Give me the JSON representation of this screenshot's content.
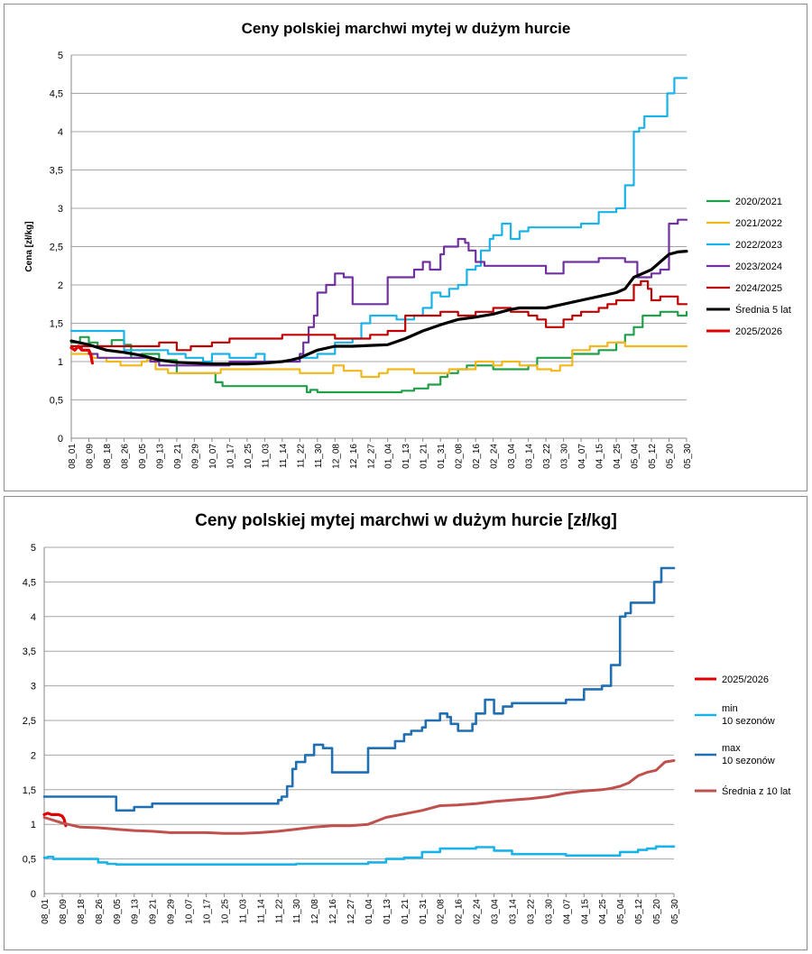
{
  "chart_data": [
    {
      "type": "line",
      "title": "Ceny polskiej  marchwi mytej w dużym hurcie",
      "ylabel": "Cena [zł/kg]",
      "xlabel": "",
      "ylim": [
        0,
        5
      ],
      "yticks": [
        "0",
        "0,5",
        "1",
        "1,5",
        "2",
        "2,5",
        "3",
        "3,5",
        "4",
        "4,5",
        "5"
      ],
      "categories": [
        "08_01",
        "08_09",
        "08_18",
        "08_26",
        "09_05",
        "09_13",
        "09_21",
        "09_29",
        "10_07",
        "10_17",
        "10_25",
        "11_03",
        "11_14",
        "11_22",
        "11_30",
        "12_08",
        "12_16",
        "12_27",
        "01_04",
        "01_13",
        "01_21",
        "01_31",
        "02_08",
        "02_16",
        "02_24",
        "03_04",
        "03_14",
        "03_22",
        "03_30",
        "04_07",
        "04_15",
        "04_25",
        "05_04",
        "05_12",
        "05_20",
        "05_30"
      ],
      "grid": true,
      "legend_position": "right",
      "series": [
        {
          "name": "2020/2021",
          "color": "#1fa048",
          "width": 2.2,
          "step": true,
          "x": [
            0,
            0.5,
            1,
            1.5,
            2.3,
            3,
            3.4,
            4,
            5,
            6,
            6.4,
            7.6,
            8.2,
            8.6,
            13.4,
            13.6,
            14,
            18,
            18.8,
            19.5,
            20.3,
            21,
            21.4,
            22,
            22.5,
            23.5,
            24,
            25,
            26,
            26.5,
            27.5,
            28.5,
            29.5,
            30,
            31,
            31.5,
            32,
            32.5,
            33.5,
            34.5,
            35
          ],
          "values": [
            1.25,
            1.32,
            1.25,
            1.2,
            1.28,
            1.22,
            1.05,
            1.1,
            1.02,
            0.85,
            0.85,
            0.85,
            0.73,
            0.68,
            0.6,
            0.63,
            0.6,
            0.6,
            0.62,
            0.65,
            0.7,
            0.8,
            0.85,
            0.9,
            0.95,
            0.95,
            0.9,
            0.9,
            0.95,
            1.05,
            1.05,
            1.1,
            1.1,
            1.15,
            1.25,
            1.35,
            1.45,
            1.6,
            1.65,
            1.6,
            1.65
          ]
        },
        {
          "name": "2021/2022",
          "color": "#f2b71c",
          "width": 2.2,
          "step": true,
          "x": [
            0,
            1.2,
            2,
            2.8,
            3.5,
            4,
            4.3,
            4.8,
            5.5,
            7,
            8.5,
            13,
            14,
            14.9,
            15.5,
            16.5,
            17.5,
            18,
            19.5,
            21,
            21.5,
            23,
            24,
            24.5,
            25.5,
            26.5,
            27.3,
            27.8,
            28.5,
            29.5,
            30.5,
            31.5,
            32.5,
            35
          ],
          "values": [
            1.1,
            1.05,
            1.0,
            0.95,
            0.95,
            1.0,
            1.02,
            0.9,
            0.85,
            0.85,
            0.9,
            0.85,
            0.85,
            0.95,
            0.88,
            0.8,
            0.85,
            0.9,
            0.85,
            0.85,
            0.9,
            1.0,
            0.95,
            1.0,
            0.95,
            0.9,
            0.88,
            0.95,
            1.15,
            1.2,
            1.25,
            1.2,
            1.2,
            1.2
          ]
        },
        {
          "name": "2022/2023",
          "color": "#1ab2e8",
          "width": 2.2,
          "step": true,
          "x": [
            0,
            0.5,
            1,
            1.5,
            2,
            2.5,
            3,
            3.5,
            4,
            4.5,
            5,
            5.5,
            6.5,
            7.5,
            8,
            9,
            10,
            10.5,
            11,
            12,
            13,
            14,
            14.5,
            15,
            16,
            16.5,
            17,
            18.5,
            19.5,
            20,
            20.5,
            21,
            21.5,
            22,
            22.5,
            23,
            23.3,
            23.8,
            24,
            24.5,
            25,
            25.5,
            26,
            26.5,
            28,
            29,
            30,
            30.5,
            31,
            31.5,
            32,
            32.3,
            32.6,
            33,
            33.5,
            33.9,
            34.3,
            34.6,
            35
          ],
          "values": [
            1.4,
            1.4,
            1.4,
            1.4,
            1.4,
            1.4,
            1.15,
            1.15,
            1.15,
            1.15,
            1.15,
            1.1,
            1.05,
            1.0,
            1.1,
            1.05,
            1.05,
            1.1,
            1.0,
            1.0,
            1.05,
            1.1,
            1.1,
            1.25,
            1.3,
            1.5,
            1.6,
            1.55,
            1.6,
            1.7,
            1.9,
            1.85,
            1.95,
            2.0,
            2.2,
            2.25,
            2.45,
            2.6,
            2.65,
            2.8,
            2.6,
            2.7,
            2.75,
            2.75,
            2.75,
            2.8,
            2.95,
            2.95,
            3.0,
            3.3,
            4.0,
            4.05,
            4.2,
            4.2,
            4.2,
            4.5,
            4.7,
            4.7,
            4.7
          ]
        },
        {
          "name": "2023/2024",
          "color": "#7030a0",
          "width": 2.2,
          "step": true,
          "x": [
            0,
            0.6,
            1,
            1.5,
            2.5,
            3.5,
            4.5,
            5,
            6,
            7,
            8,
            9,
            10,
            11,
            12,
            13,
            13.2,
            13.5,
            13.8,
            14,
            14.5,
            15,
            15.5,
            16,
            16.5,
            17.5,
            18,
            19,
            19.5,
            20,
            20.4,
            21,
            21.2,
            21.5,
            22,
            22.4,
            22.6,
            23,
            23.5,
            24.5,
            25.5,
            27,
            28,
            29,
            30,
            31,
            31.5,
            32.2,
            32.6,
            33,
            33.5,
            34,
            34.5,
            35
          ],
          "values": [
            1.2,
            1.15,
            1.1,
            1.05,
            1.05,
            1.05,
            1.0,
            0.95,
            0.95,
            0.95,
            0.95,
            1.0,
            1.0,
            1.0,
            1.0,
            1.1,
            1.25,
            1.45,
            1.6,
            1.9,
            2.0,
            2.15,
            2.1,
            1.75,
            1.75,
            1.75,
            2.1,
            2.1,
            2.2,
            2.3,
            2.2,
            2.4,
            2.5,
            2.5,
            2.6,
            2.55,
            2.45,
            2.3,
            2.25,
            2.25,
            2.25,
            2.15,
            2.3,
            2.3,
            2.35,
            2.35,
            2.3,
            2.1,
            2.1,
            2.15,
            2.2,
            2.8,
            2.85,
            2.85
          ]
        },
        {
          "name": "2024/2025",
          "color": "#c00000",
          "width": 2.2,
          "step": true,
          "x": [
            0,
            1,
            2,
            3,
            4,
            4.5,
            5,
            6,
            6.8,
            7.5,
            8,
            8.5,
            9,
            10,
            12,
            14,
            15,
            16,
            17,
            18,
            19,
            20,
            20.5,
            21,
            22,
            23,
            24,
            24.5,
            25,
            25.5,
            26,
            26.5,
            27,
            27.5,
            28,
            28.5,
            29,
            29.5,
            30,
            30.5,
            31,
            32,
            32.4,
            32.8,
            33,
            33.5,
            34,
            34.5,
            35
          ],
          "values": [
            1.2,
            1.2,
            1.2,
            1.2,
            1.2,
            1.2,
            1.25,
            1.15,
            1.2,
            1.2,
            1.25,
            1.25,
            1.3,
            1.3,
            1.35,
            1.35,
            1.3,
            1.3,
            1.35,
            1.4,
            1.6,
            1.6,
            1.6,
            1.65,
            1.6,
            1.65,
            1.7,
            1.7,
            1.65,
            1.65,
            1.6,
            1.55,
            1.45,
            1.45,
            1.55,
            1.6,
            1.65,
            1.65,
            1.7,
            1.75,
            1.8,
            2.0,
            2.05,
            1.95,
            1.8,
            1.85,
            1.85,
            1.75,
            1.75
          ]
        },
        {
          "name": "Średnia 5 lat",
          "color": "#000000",
          "width": 3.2,
          "step": false,
          "x": [
            0,
            1,
            2,
            3,
            4,
            5,
            6,
            7,
            8,
            9,
            10,
            11,
            12,
            12.5,
            13,
            13.5,
            14,
            15,
            16,
            17,
            18,
            19,
            20,
            21,
            22,
            23,
            24,
            25,
            25.5,
            26,
            27,
            28,
            29,
            30,
            31,
            31.5,
            32,
            32.5,
            33,
            33.5,
            34,
            34.5,
            35
          ],
          "values": [
            1.27,
            1.22,
            1.15,
            1.12,
            1.08,
            1.02,
            0.99,
            0.98,
            0.97,
            0.97,
            0.97,
            0.98,
            1.0,
            1.02,
            1.05,
            1.1,
            1.15,
            1.2,
            1.2,
            1.21,
            1.22,
            1.3,
            1.4,
            1.48,
            1.55,
            1.58,
            1.62,
            1.68,
            1.7,
            1.7,
            1.7,
            1.75,
            1.8,
            1.85,
            1.9,
            1.95,
            2.1,
            2.15,
            2.2,
            2.3,
            2.4,
            2.43,
            2.44
          ]
        },
        {
          "name": "2025/2026",
          "color": "#e00000",
          "width": 3.2,
          "step": false,
          "x": [
            0,
            0.2,
            0.4,
            0.6,
            0.8,
            1.0,
            1.1,
            1.2
          ],
          "values": [
            1.18,
            1.15,
            1.2,
            1.15,
            1.15,
            1.15,
            1.1,
            0.98
          ]
        }
      ]
    },
    {
      "type": "line",
      "title": "Ceny polskiej mytej marchwi w dużym hurcie [zł/kg]",
      "ylabel": "",
      "xlabel": "",
      "ylim": [
        0,
        5
      ],
      "yticks": [
        "0",
        "0,5",
        "1",
        "1,5",
        "2",
        "2,5",
        "3",
        "3,5",
        "4",
        "4,5",
        "5"
      ],
      "categories": [
        "08_01",
        "08_09",
        "08_18",
        "08_26",
        "09_05",
        "09_13",
        "09_21",
        "09_29",
        "10_07",
        "10_17",
        "10_25",
        "11_03",
        "11_14",
        "11_22",
        "11_30",
        "12_08",
        "12_16",
        "12_27",
        "01_04",
        "01_13",
        "01_21",
        "01_31",
        "02_08",
        "02_16",
        "02_24",
        "03_04",
        "03_14",
        "03_22",
        "03_30",
        "04_07",
        "04_15",
        "04_25",
        "05_04",
        "05_12",
        "05_20",
        "05_30"
      ],
      "grid": true,
      "legend_position": "right",
      "series": [
        {
          "name": "2025/2026",
          "label_lines": [
            "2025/2026"
          ],
          "color": "#e00000",
          "width": 3.2,
          "step": false,
          "x": [
            0,
            0.2,
            0.4,
            0.6,
            0.8,
            1.0,
            1.1,
            1.2
          ],
          "values": [
            1.14,
            1.16,
            1.14,
            1.14,
            1.14,
            1.12,
            1.08,
            0.98
          ]
        },
        {
          "name": "min 10 sezonów",
          "label_lines": [
            "min",
            "10 sezonów"
          ],
          "color": "#1ab2e8",
          "width": 2.6,
          "step": true,
          "x": [
            0,
            0.2,
            0.5,
            1,
            2,
            3,
            3.5,
            4,
            5,
            6,
            7,
            8,
            9,
            10,
            11,
            12,
            13,
            14,
            15,
            16,
            17,
            18,
            18.5,
            19,
            20,
            21,
            22,
            23,
            24,
            25,
            26,
            27,
            28,
            29,
            30,
            31,
            31.5,
            32,
            32.5,
            33,
            33.5,
            34,
            35
          ],
          "values": [
            0.52,
            0.53,
            0.5,
            0.5,
            0.5,
            0.45,
            0.43,
            0.42,
            0.42,
            0.42,
            0.42,
            0.42,
            0.42,
            0.42,
            0.42,
            0.42,
            0.42,
            0.43,
            0.43,
            0.43,
            0.43,
            0.45,
            0.45,
            0.5,
            0.52,
            0.6,
            0.65,
            0.65,
            0.67,
            0.62,
            0.57,
            0.57,
            0.57,
            0.55,
            0.55,
            0.55,
            0.55,
            0.6,
            0.6,
            0.63,
            0.65,
            0.68,
            0.68
          ]
        },
        {
          "name": "max 10 sezonów",
          "label_lines": [
            "max",
            "10 sezonów"
          ],
          "color": "#1f6fb2",
          "width": 2.6,
          "step": true,
          "x": [
            0,
            1,
            2,
            3,
            4,
            4.5,
            5,
            6,
            7,
            8,
            9,
            10,
            11,
            12,
            13,
            13.2,
            13.5,
            13.8,
            14,
            14.5,
            15,
            15.5,
            16,
            16.5,
            17.5,
            18,
            19,
            19.5,
            20,
            20.4,
            21,
            21.2,
            21.5,
            22,
            22.4,
            22.6,
            23,
            23.3,
            23.8,
            24,
            24.5,
            25,
            25.5,
            26,
            26.5,
            28,
            29,
            30,
            30.5,
            31,
            31.5,
            32,
            32.3,
            32.6,
            33,
            33.5,
            33.9,
            34.3,
            34.6,
            35
          ],
          "values": [
            1.4,
            1.4,
            1.4,
            1.4,
            1.2,
            1.2,
            1.25,
            1.3,
            1.3,
            1.3,
            1.3,
            1.3,
            1.3,
            1.3,
            1.35,
            1.4,
            1.55,
            1.8,
            1.9,
            2.0,
            2.15,
            2.1,
            1.75,
            1.75,
            1.75,
            2.1,
            2.1,
            2.2,
            2.3,
            2.35,
            2.4,
            2.5,
            2.5,
            2.6,
            2.55,
            2.45,
            2.35,
            2.35,
            2.45,
            2.6,
            2.8,
            2.6,
            2.7,
            2.75,
            2.75,
            2.75,
            2.8,
            2.95,
            2.95,
            3.0,
            3.3,
            4.0,
            4.05,
            4.2,
            4.2,
            4.2,
            4.5,
            4.7,
            4.7,
            4.7
          ]
        },
        {
          "name": "Średnia z 10 lat",
          "label_lines": [
            "Średnia z 10 lat"
          ],
          "color": "#c0504d",
          "width": 3.0,
          "step": false,
          "x": [
            0,
            1,
            2,
            3,
            4,
            5,
            6,
            7,
            8,
            9,
            10,
            11,
            12,
            13,
            14,
            15,
            16,
            17,
            18,
            18.5,
            19,
            20,
            21,
            22,
            23,
            24,
            25,
            26,
            27,
            28,
            29,
            30,
            31,
            31.5,
            32,
            32.5,
            33,
            33.5,
            34,
            34.5,
            35
          ],
          "values": [
            1.1,
            1.02,
            0.96,
            0.95,
            0.93,
            0.91,
            0.9,
            0.88,
            0.88,
            0.88,
            0.87,
            0.87,
            0.88,
            0.9,
            0.93,
            0.96,
            0.98,
            0.98,
            1.0,
            1.05,
            1.1,
            1.15,
            1.2,
            1.27,
            1.28,
            1.3,
            1.33,
            1.35,
            1.37,
            1.4,
            1.45,
            1.48,
            1.5,
            1.52,
            1.55,
            1.6,
            1.7,
            1.75,
            1.78,
            1.9,
            1.92
          ]
        }
      ]
    }
  ]
}
